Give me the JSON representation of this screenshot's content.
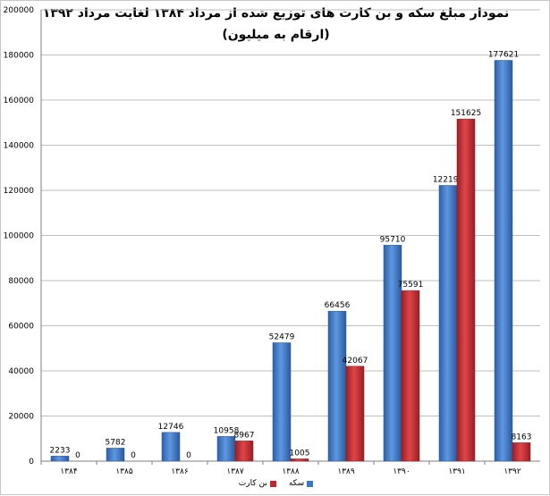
{
  "chart_data": {
    "type": "bar",
    "title": "نمودار مبلغ سکه و بن کارت های توزیع شده از مرداد ۱۳۸۴ لغایت مرداد ۱۳۹۲",
    "subtitle": "(ارقام به میلیون)",
    "xlabel": "",
    "ylabel": "",
    "categories": [
      "۱۳۸۴",
      "۱۳۸۵",
      "۱۳۸۶",
      "۱۳۸۷",
      "۱۳۸۸",
      "۱۳۸۹",
      "۱۳۹۰",
      "۱۳۹۱",
      "۱۳۹۲"
    ],
    "series": [
      {
        "name": "سکه",
        "color": "#3d78c8",
        "values": [
          2233,
          5782,
          12746,
          10958,
          52479,
          66456,
          95710,
          122192,
          177621
        ]
      },
      {
        "name": "بن کارت",
        "color": "#c0282d",
        "values": [
          0,
          0,
          0,
          8967,
          1005,
          42067,
          75591,
          151625,
          8163
        ]
      }
    ],
    "ylim": [
      0,
      200000
    ],
    "yticks": [
      "0",
      "20000",
      "40000",
      "60000",
      "80000",
      "100000",
      "120000",
      "140000",
      "160000",
      "180000",
      "200000"
    ],
    "grid": true,
    "legend_position": "bottom"
  }
}
